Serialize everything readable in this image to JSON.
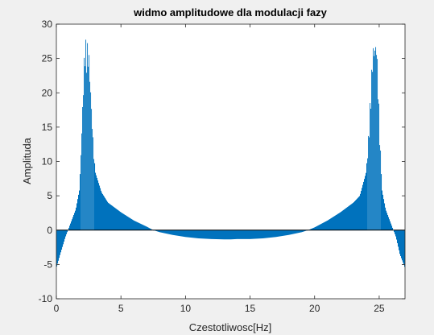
{
  "chart_data": {
    "type": "bar",
    "title": "widmo amplitudowe dla modulacji fazy",
    "xlabel": "Czestotliwosc[Hz]",
    "ylabel": "Amplituda",
    "xlim": [
      0,
      27
    ],
    "ylim": [
      -10,
      30
    ],
    "xticks": [
      0,
      5,
      10,
      15,
      20,
      25
    ],
    "yticks": [
      -10,
      -5,
      0,
      5,
      10,
      15,
      20,
      25,
      30
    ],
    "grid": false,
    "bar_color": "#0072bd",
    "envelope": {
      "x": [
        0,
        0.3,
        0.7,
        1.0,
        1.5,
        1.8,
        2.0,
        2.2,
        2.5,
        2.8,
        3.0,
        3.5,
        4.0,
        5.0,
        6.0,
        7.0,
        7.5,
        8.0,
        9.0,
        10.0,
        11.0,
        12.0,
        13.0,
        13.5,
        14.0,
        15.0,
        16.0,
        17.0,
        18.0,
        19.0,
        19.5,
        20.0,
        21.0,
        22.0,
        23.0,
        23.5,
        24.0,
        24.2,
        24.5,
        24.8,
        25.0,
        25.2,
        25.5,
        26.0,
        26.3,
        26.6,
        27.0
      ],
      "y": [
        -5.5,
        -3.5,
        -1.0,
        0.5,
        3.0,
        6.0,
        17.0,
        28.0,
        27.0,
        15.0,
        8.5,
        5.5,
        4.0,
        2.6,
        1.4,
        0.5,
        0.0,
        -0.3,
        -0.7,
        -1.0,
        -1.2,
        -1.3,
        -1.35,
        -1.35,
        -1.3,
        -1.3,
        -1.2,
        -1.0,
        -0.7,
        -0.3,
        0.0,
        0.4,
        1.4,
        2.6,
        4.0,
        5.0,
        8.5,
        15.0,
        27.0,
        28.0,
        17.0,
        6.0,
        3.0,
        0.5,
        -1.0,
        -3.5,
        -5.5
      ]
    }
  }
}
